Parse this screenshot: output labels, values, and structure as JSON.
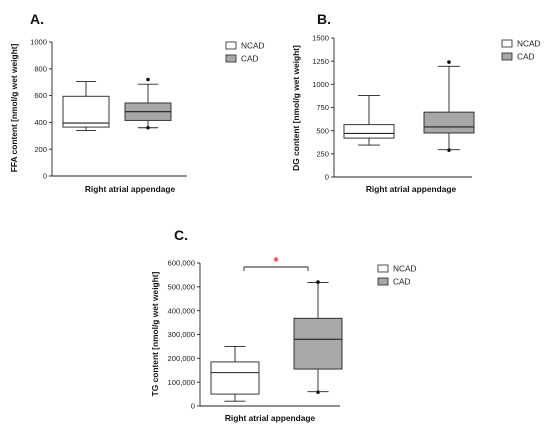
{
  "chart_data": [
    {
      "type": "boxplot",
      "panel_label": "A.",
      "ylabel": "FFA content [nmol/g wet weight]",
      "xlabel": "Right atrial appendage",
      "ylim": [
        0,
        1000
      ],
      "yticks": [
        "0",
        "200",
        "400",
        "600",
        "800",
        "1000"
      ],
      "ytick_values": [
        0,
        200,
        400,
        600,
        800,
        1000
      ],
      "legend": [
        {
          "name": "NCAD",
          "color": "#ffffff"
        },
        {
          "name": "CAD",
          "color": "#a8a8a8"
        }
      ],
      "boxes": [
        {
          "name": "NCAD",
          "min": 340,
          "q1": 365,
          "median": 395,
          "q3": 595,
          "max": 705,
          "outliers": [],
          "color": "#ffffff"
        },
        {
          "name": "CAD",
          "min": 360,
          "q1": 415,
          "median": 480,
          "q3": 545,
          "max": 685,
          "outliers": [
            360,
            720
          ],
          "color": "#a8a8a8"
        }
      ]
    },
    {
      "type": "boxplot",
      "panel_label": "B.",
      "ylabel": "DG content [nmol/g wet weight]",
      "xlabel": "Right atrial appendage",
      "ylim": [
        0,
        1500
      ],
      "yticks": [
        "0",
        "250",
        "500",
        "750",
        "1000",
        "1250",
        "1500"
      ],
      "ytick_values": [
        0,
        250,
        500,
        750,
        1000,
        1250,
        1500
      ],
      "legend": [
        {
          "name": "NCAD",
          "color": "#ffffff"
        },
        {
          "name": "CAD",
          "color": "#a8a8a8"
        }
      ],
      "boxes": [
        {
          "name": "NCAD",
          "min": 345,
          "q1": 420,
          "median": 470,
          "q3": 565,
          "max": 880,
          "outliers": [],
          "color": "#ffffff"
        },
        {
          "name": "CAD",
          "min": 295,
          "q1": 475,
          "median": 540,
          "q3": 700,
          "max": 1195,
          "outliers": [
            290,
            1240
          ],
          "color": "#a8a8a8"
        }
      ]
    },
    {
      "type": "boxplot",
      "panel_label": "C.",
      "ylabel": "TG content [nmol/g wet weight]",
      "xlabel": "Right atrial appendage",
      "ylim": [
        0,
        600000
      ],
      "yticks": [
        "0",
        "100,000",
        "200,000",
        "300,000",
        "400,000",
        "500,000",
        "600,000"
      ],
      "ytick_values": [
        0,
        100000,
        200000,
        300000,
        400000,
        500000,
        600000
      ],
      "legend": [
        {
          "name": "NCAD",
          "color": "#ffffff"
        },
        {
          "name": "CAD",
          "color": "#a8a8a8"
        }
      ],
      "boxes": [
        {
          "name": "NCAD",
          "min": 20000,
          "q1": 50000,
          "median": 140000,
          "q3": 185000,
          "max": 250000,
          "outliers": [],
          "color": "#ffffff"
        },
        {
          "name": "CAD",
          "min": 60000,
          "q1": 155000,
          "median": 280000,
          "q3": 368000,
          "max": 518000,
          "outliers": [
            58000,
            520000
          ],
          "color": "#a8a8a8"
        }
      ],
      "significance": {
        "marker": "*",
        "color": "#e8383d",
        "between": [
          "NCAD",
          "CAD"
        ]
      }
    }
  ]
}
